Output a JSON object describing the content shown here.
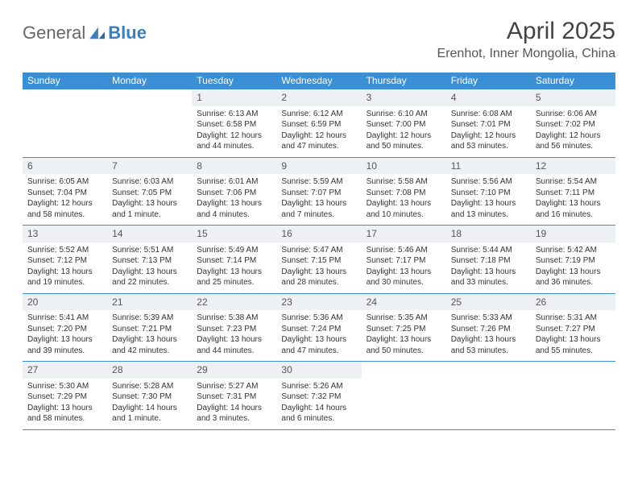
{
  "logo": {
    "word1": "General",
    "word2": "Blue"
  },
  "title": "April 2025",
  "location": "Erenhot, Inner Mongolia, China",
  "colors": {
    "header_bar": "#3b8fd4",
    "day_num_bg": "#eef1f3",
    "rule": "#3b8fd4",
    "logo_blue": "#3b7fbf"
  },
  "weekdays": [
    "Sunday",
    "Monday",
    "Tuesday",
    "Wednesday",
    "Thursday",
    "Friday",
    "Saturday"
  ],
  "weeks": [
    [
      {
        "n": "",
        "blank": true
      },
      {
        "n": "",
        "blank": true
      },
      {
        "n": "1",
        "sr": "Sunrise: 6:13 AM",
        "ss": "Sunset: 6:58 PM",
        "d1": "Daylight: 12 hours",
        "d2": "and 44 minutes."
      },
      {
        "n": "2",
        "sr": "Sunrise: 6:12 AM",
        "ss": "Sunset: 6:59 PM",
        "d1": "Daylight: 12 hours",
        "d2": "and 47 minutes."
      },
      {
        "n": "3",
        "sr": "Sunrise: 6:10 AM",
        "ss": "Sunset: 7:00 PM",
        "d1": "Daylight: 12 hours",
        "d2": "and 50 minutes."
      },
      {
        "n": "4",
        "sr": "Sunrise: 6:08 AM",
        "ss": "Sunset: 7:01 PM",
        "d1": "Daylight: 12 hours",
        "d2": "and 53 minutes."
      },
      {
        "n": "5",
        "sr": "Sunrise: 6:06 AM",
        "ss": "Sunset: 7:02 PM",
        "d1": "Daylight: 12 hours",
        "d2": "and 56 minutes."
      }
    ],
    [
      {
        "n": "6",
        "sr": "Sunrise: 6:05 AM",
        "ss": "Sunset: 7:04 PM",
        "d1": "Daylight: 12 hours",
        "d2": "and 58 minutes."
      },
      {
        "n": "7",
        "sr": "Sunrise: 6:03 AM",
        "ss": "Sunset: 7:05 PM",
        "d1": "Daylight: 13 hours",
        "d2": "and 1 minute."
      },
      {
        "n": "8",
        "sr": "Sunrise: 6:01 AM",
        "ss": "Sunset: 7:06 PM",
        "d1": "Daylight: 13 hours",
        "d2": "and 4 minutes."
      },
      {
        "n": "9",
        "sr": "Sunrise: 5:59 AM",
        "ss": "Sunset: 7:07 PM",
        "d1": "Daylight: 13 hours",
        "d2": "and 7 minutes."
      },
      {
        "n": "10",
        "sr": "Sunrise: 5:58 AM",
        "ss": "Sunset: 7:08 PM",
        "d1": "Daylight: 13 hours",
        "d2": "and 10 minutes."
      },
      {
        "n": "11",
        "sr": "Sunrise: 5:56 AM",
        "ss": "Sunset: 7:10 PM",
        "d1": "Daylight: 13 hours",
        "d2": "and 13 minutes."
      },
      {
        "n": "12",
        "sr": "Sunrise: 5:54 AM",
        "ss": "Sunset: 7:11 PM",
        "d1": "Daylight: 13 hours",
        "d2": "and 16 minutes."
      }
    ],
    [
      {
        "n": "13",
        "sr": "Sunrise: 5:52 AM",
        "ss": "Sunset: 7:12 PM",
        "d1": "Daylight: 13 hours",
        "d2": "and 19 minutes."
      },
      {
        "n": "14",
        "sr": "Sunrise: 5:51 AM",
        "ss": "Sunset: 7:13 PM",
        "d1": "Daylight: 13 hours",
        "d2": "and 22 minutes."
      },
      {
        "n": "15",
        "sr": "Sunrise: 5:49 AM",
        "ss": "Sunset: 7:14 PM",
        "d1": "Daylight: 13 hours",
        "d2": "and 25 minutes."
      },
      {
        "n": "16",
        "sr": "Sunrise: 5:47 AM",
        "ss": "Sunset: 7:15 PM",
        "d1": "Daylight: 13 hours",
        "d2": "and 28 minutes."
      },
      {
        "n": "17",
        "sr": "Sunrise: 5:46 AM",
        "ss": "Sunset: 7:17 PM",
        "d1": "Daylight: 13 hours",
        "d2": "and 30 minutes."
      },
      {
        "n": "18",
        "sr": "Sunrise: 5:44 AM",
        "ss": "Sunset: 7:18 PM",
        "d1": "Daylight: 13 hours",
        "d2": "and 33 minutes."
      },
      {
        "n": "19",
        "sr": "Sunrise: 5:42 AM",
        "ss": "Sunset: 7:19 PM",
        "d1": "Daylight: 13 hours",
        "d2": "and 36 minutes."
      }
    ],
    [
      {
        "n": "20",
        "sr": "Sunrise: 5:41 AM",
        "ss": "Sunset: 7:20 PM",
        "d1": "Daylight: 13 hours",
        "d2": "and 39 minutes."
      },
      {
        "n": "21",
        "sr": "Sunrise: 5:39 AM",
        "ss": "Sunset: 7:21 PM",
        "d1": "Daylight: 13 hours",
        "d2": "and 42 minutes."
      },
      {
        "n": "22",
        "sr": "Sunrise: 5:38 AM",
        "ss": "Sunset: 7:23 PM",
        "d1": "Daylight: 13 hours",
        "d2": "and 44 minutes."
      },
      {
        "n": "23",
        "sr": "Sunrise: 5:36 AM",
        "ss": "Sunset: 7:24 PM",
        "d1": "Daylight: 13 hours",
        "d2": "and 47 minutes."
      },
      {
        "n": "24",
        "sr": "Sunrise: 5:35 AM",
        "ss": "Sunset: 7:25 PM",
        "d1": "Daylight: 13 hours",
        "d2": "and 50 minutes."
      },
      {
        "n": "25",
        "sr": "Sunrise: 5:33 AM",
        "ss": "Sunset: 7:26 PM",
        "d1": "Daylight: 13 hours",
        "d2": "and 53 minutes."
      },
      {
        "n": "26",
        "sr": "Sunrise: 5:31 AM",
        "ss": "Sunset: 7:27 PM",
        "d1": "Daylight: 13 hours",
        "d2": "and 55 minutes."
      }
    ],
    [
      {
        "n": "27",
        "sr": "Sunrise: 5:30 AM",
        "ss": "Sunset: 7:29 PM",
        "d1": "Daylight: 13 hours",
        "d2": "and 58 minutes."
      },
      {
        "n": "28",
        "sr": "Sunrise: 5:28 AM",
        "ss": "Sunset: 7:30 PM",
        "d1": "Daylight: 14 hours",
        "d2": "and 1 minute."
      },
      {
        "n": "29",
        "sr": "Sunrise: 5:27 AM",
        "ss": "Sunset: 7:31 PM",
        "d1": "Daylight: 14 hours",
        "d2": "and 3 minutes."
      },
      {
        "n": "30",
        "sr": "Sunrise: 5:26 AM",
        "ss": "Sunset: 7:32 PM",
        "d1": "Daylight: 14 hours",
        "d2": "and 6 minutes."
      },
      {
        "n": "",
        "blank": true
      },
      {
        "n": "",
        "blank": true
      },
      {
        "n": "",
        "blank": true
      }
    ]
  ]
}
